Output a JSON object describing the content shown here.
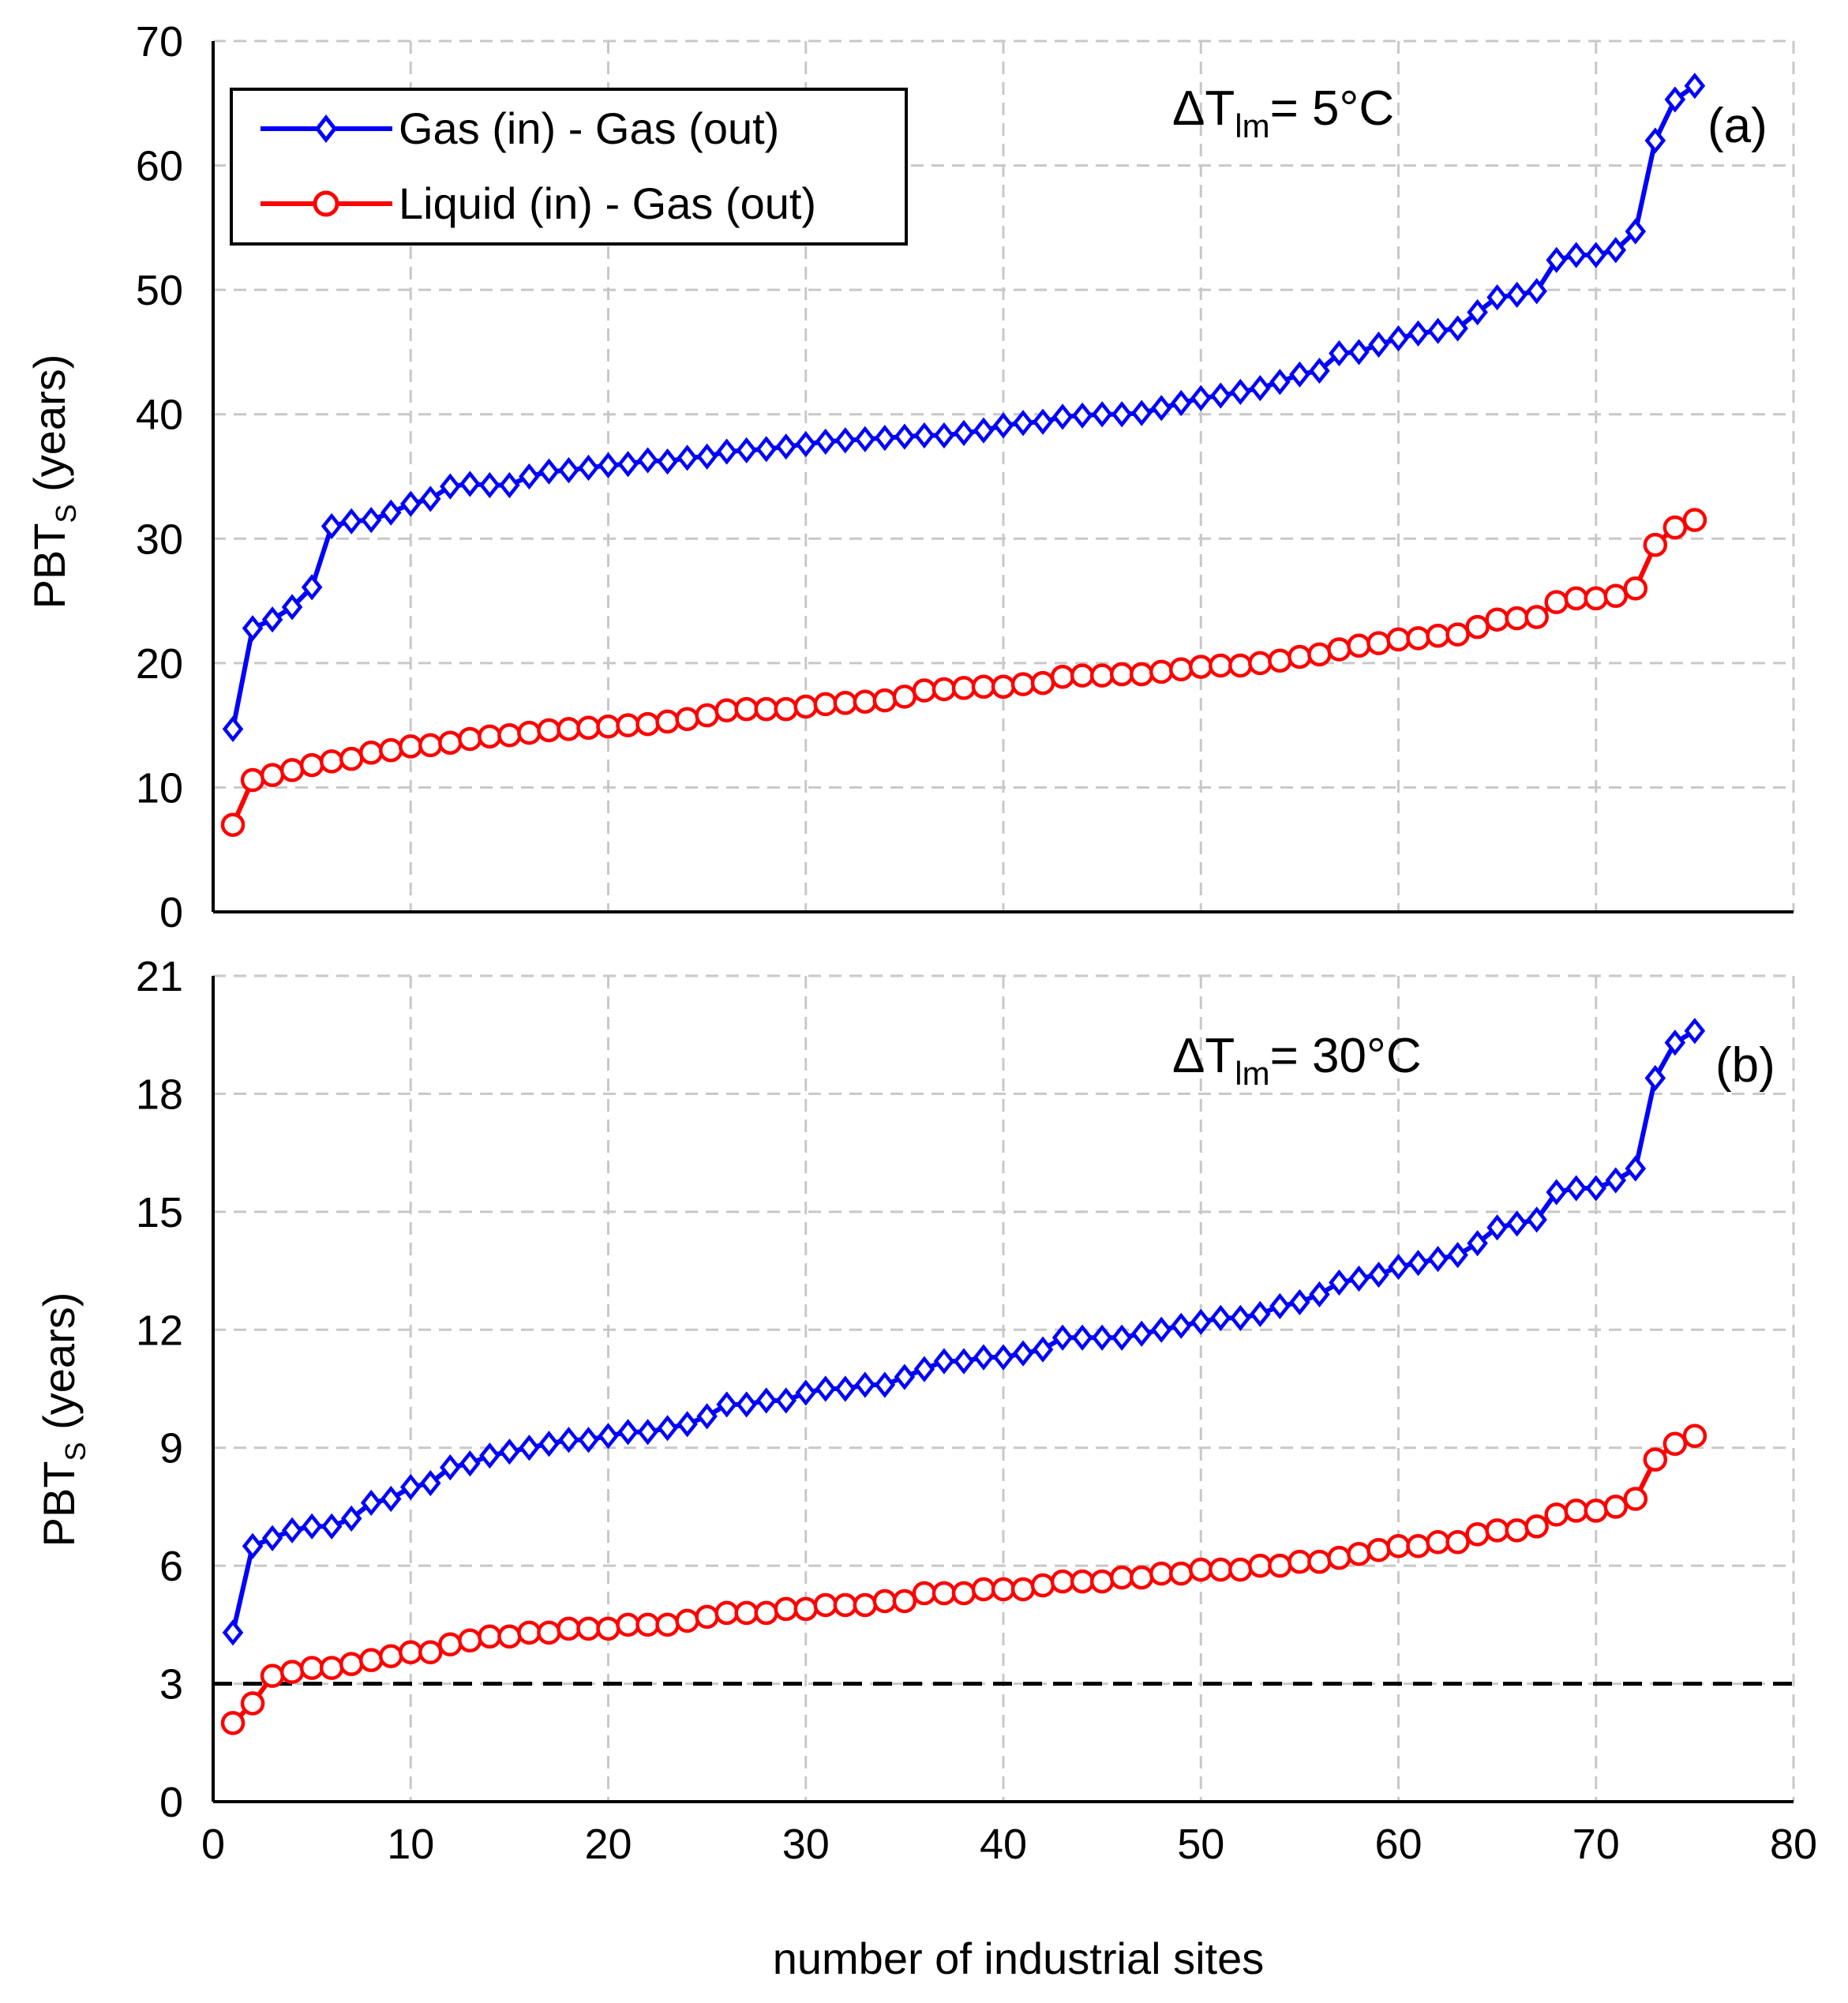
{
  "chart_data": [
    {
      "type": "line",
      "panel_label": "(a)",
      "annotation": {
        "prefix": "ΔT",
        "subscript": "lm",
        "suffix": "= 5°C"
      },
      "ylabel": {
        "main": "PBT",
        "sub": "S",
        "rest": " (years)"
      },
      "xlim": [
        0,
        80
      ],
      "ylim": [
        0,
        70
      ],
      "xticks": [
        "0",
        "10",
        "20",
        "30",
        "40",
        "50",
        "60",
        "70",
        "80"
      ],
      "yticks": [
        "0",
        "10",
        "20",
        "30",
        "40",
        "50",
        "60",
        "70"
      ],
      "grid": true,
      "legend_position": "top-left",
      "legend": [
        "Gas (in) - Gas (out)",
        "Liquid (in) - Gas (out)"
      ],
      "series": [
        {
          "name": "Gas (in) - Gas (out)",
          "color": "#0000ff",
          "marker": "diamond",
          "values": [
            14.7,
            22.8,
            23.5,
            24.5,
            26.1,
            31.0,
            31.4,
            31.5,
            32.1,
            32.8,
            33.2,
            34.2,
            34.4,
            34.3,
            34.3,
            35.0,
            35.4,
            35.5,
            35.7,
            35.9,
            36.0,
            36.3,
            36.2,
            36.5,
            36.6,
            37.0,
            37.1,
            37.2,
            37.4,
            37.6,
            37.8,
            37.9,
            38.0,
            38.1,
            38.2,
            38.3,
            38.3,
            38.5,
            38.7,
            39.1,
            39.3,
            39.4,
            39.8,
            39.9,
            40.0,
            40.0,
            40.1,
            40.5,
            40.9,
            41.3,
            41.5,
            41.8,
            42.1,
            42.6,
            43.2,
            43.5,
            44.9,
            45.0,
            45.6,
            46.1,
            46.5,
            46.7,
            46.9,
            48.2,
            49.4,
            49.6,
            49.9,
            52.4,
            52.8,
            52.8,
            53.2,
            54.7,
            62.0,
            65.3,
            66.4
          ]
        },
        {
          "name": "Liquid (in) - Gas (out)",
          "color": "#ff0000",
          "marker": "circle",
          "values": [
            7.0,
            10.6,
            11.0,
            11.4,
            11.8,
            12.1,
            12.3,
            12.8,
            13.0,
            13.3,
            13.4,
            13.6,
            13.9,
            14.1,
            14.2,
            14.4,
            14.6,
            14.7,
            14.8,
            14.9,
            15.0,
            15.1,
            15.3,
            15.5,
            15.8,
            16.2,
            16.3,
            16.3,
            16.3,
            16.5,
            16.7,
            16.8,
            16.9,
            17.0,
            17.3,
            17.8,
            17.9,
            18.0,
            18.1,
            18.1,
            18.3,
            18.4,
            18.9,
            19.0,
            19.0,
            19.1,
            19.1,
            19.3,
            19.5,
            19.7,
            19.8,
            19.8,
            20.0,
            20.2,
            20.5,
            20.7,
            21.1,
            21.4,
            21.6,
            21.9,
            22.0,
            22.2,
            22.3,
            22.9,
            23.5,
            23.6,
            23.7,
            24.9,
            25.2,
            25.2,
            25.4,
            26.0,
            29.5,
            30.9,
            31.5
          ]
        }
      ]
    },
    {
      "type": "line",
      "panel_label": "(b)",
      "annotation": {
        "prefix": "ΔT",
        "subscript": "lm",
        "suffix": "= 30°C"
      },
      "ylabel": {
        "main": "PBT",
        "sub": "S",
        "rest": " (years)"
      },
      "xlabel": "number of industrial sites",
      "xlim": [
        0,
        80
      ],
      "ylim": [
        0,
        21
      ],
      "xticks": [
        "0",
        "10",
        "20",
        "30",
        "40",
        "50",
        "60",
        "70",
        "80"
      ],
      "yticks": [
        "0",
        "3",
        "6",
        "9",
        "12",
        "15",
        "18",
        "21"
      ],
      "grid": true,
      "reference_line": {
        "y": 3,
        "style": "dashed",
        "color": "#000000"
      },
      "series": [
        {
          "name": "Gas (in) - Gas (out)",
          "color": "#0000ff",
          "marker": "diamond",
          "values": [
            4.3,
            6.5,
            6.7,
            6.9,
            7.0,
            7.0,
            7.2,
            7.6,
            7.7,
            8.0,
            8.1,
            8.5,
            8.6,
            8.8,
            8.9,
            9.0,
            9.1,
            9.2,
            9.2,
            9.3,
            9.4,
            9.4,
            9.5,
            9.6,
            9.8,
            10.1,
            10.1,
            10.2,
            10.2,
            10.4,
            10.5,
            10.5,
            10.6,
            10.6,
            10.8,
            11.0,
            11.2,
            11.2,
            11.3,
            11.3,
            11.4,
            11.5,
            11.8,
            11.8,
            11.8,
            11.8,
            11.9,
            12.0,
            12.1,
            12.2,
            12.3,
            12.3,
            12.4,
            12.6,
            12.7,
            12.9,
            13.2,
            13.3,
            13.4,
            13.6,
            13.7,
            13.8,
            13.9,
            14.2,
            14.6,
            14.7,
            14.8,
            15.5,
            15.6,
            15.6,
            15.8,
            16.1,
            18.4,
            19.3,
            19.6
          ]
        },
        {
          "name": "Liquid (in) - Gas (out)",
          "color": "#ff0000",
          "marker": "circle",
          "values": [
            2.0,
            2.5,
            3.2,
            3.3,
            3.4,
            3.4,
            3.5,
            3.6,
            3.7,
            3.8,
            3.8,
            4.0,
            4.1,
            4.2,
            4.2,
            4.3,
            4.3,
            4.4,
            4.4,
            4.4,
            4.5,
            4.5,
            4.5,
            4.6,
            4.7,
            4.8,
            4.8,
            4.8,
            4.9,
            4.9,
            5.0,
            5.0,
            5.0,
            5.1,
            5.1,
            5.3,
            5.3,
            5.3,
            5.4,
            5.4,
            5.4,
            5.5,
            5.6,
            5.6,
            5.6,
            5.7,
            5.7,
            5.8,
            5.8,
            5.9,
            5.9,
            5.9,
            6.0,
            6.0,
            6.1,
            6.1,
            6.2,
            6.3,
            6.4,
            6.5,
            6.5,
            6.6,
            6.6,
            6.8,
            6.9,
            6.9,
            7.0,
            7.3,
            7.4,
            7.4,
            7.5,
            7.7,
            8.7,
            9.1,
            9.3
          ]
        }
      ]
    }
  ]
}
